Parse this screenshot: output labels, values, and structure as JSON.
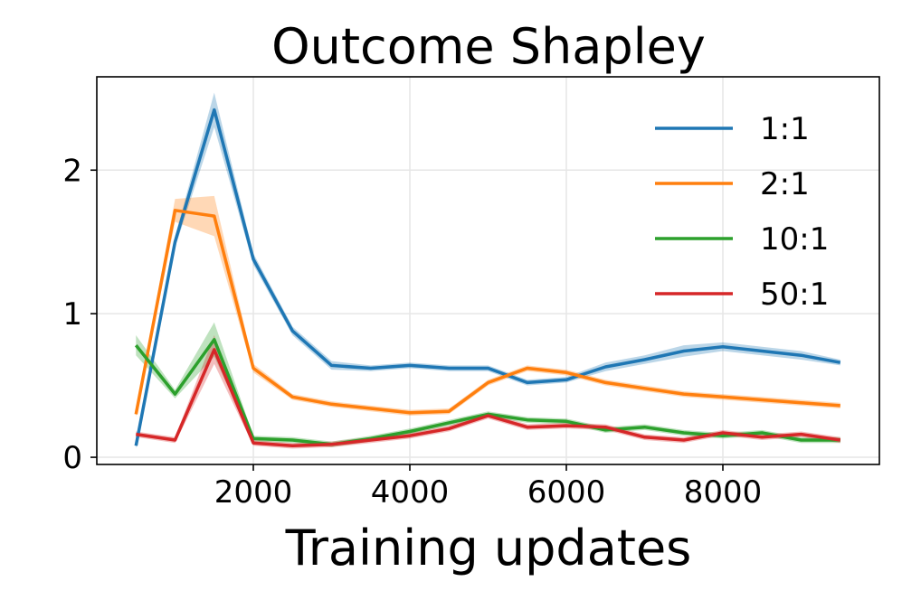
{
  "chart_data": {
    "type": "line",
    "title": "Outcome Shapley",
    "xlabel": "Training updates",
    "ylabel": "",
    "xlim": [
      0,
      10000
    ],
    "ylim": [
      -0.05,
      2.65
    ],
    "xticks": [
      2000,
      4000,
      6000,
      8000
    ],
    "xtick_labels": [
      "2000",
      "4000",
      "6000",
      "8000"
    ],
    "yticks": [
      0,
      1,
      2
    ],
    "ytick_labels": [
      "0",
      "1",
      "2"
    ],
    "grid": true,
    "legend_position": "top-right",
    "x": [
      500,
      1000,
      1500,
      2000,
      2500,
      3000,
      3500,
      4000,
      4500,
      5000,
      5500,
      6000,
      6500,
      7000,
      7500,
      8000,
      8500,
      9000,
      9500
    ],
    "series": [
      {
        "name": "1:1",
        "color": "#1f77b4",
        "values": [
          0.08,
          1.5,
          2.42,
          1.38,
          0.88,
          0.64,
          0.62,
          0.64,
          0.62,
          0.62,
          0.52,
          0.54,
          0.63,
          0.68,
          0.74,
          0.77,
          0.74,
          0.71,
          0.66
        ],
        "band": [
          0.02,
          0.04,
          0.12,
          0.04,
          0.03,
          0.03,
          0.02,
          0.02,
          0.02,
          0.02,
          0.02,
          0.02,
          0.03,
          0.03,
          0.04,
          0.03,
          0.03,
          0.03,
          0.02
        ]
      },
      {
        "name": "2:1",
        "color": "#ff7f0e",
        "values": [
          0.3,
          1.72,
          1.68,
          0.62,
          0.42,
          0.37,
          0.34,
          0.31,
          0.32,
          0.52,
          0.62,
          0.59,
          0.52,
          0.48,
          0.44,
          0.42,
          0.4,
          0.38,
          0.36
        ],
        "band": [
          0.02,
          0.08,
          0.14,
          0.03,
          0.02,
          0.02,
          0.02,
          0.02,
          0.02,
          0.02,
          0.02,
          0.02,
          0.02,
          0.02,
          0.02,
          0.02,
          0.02,
          0.02,
          0.02
        ]
      },
      {
        "name": "10:1",
        "color": "#2ca02c",
        "values": [
          0.78,
          0.44,
          0.82,
          0.13,
          0.12,
          0.09,
          0.13,
          0.18,
          0.24,
          0.3,
          0.26,
          0.25,
          0.19,
          0.21,
          0.17,
          0.15,
          0.17,
          0.12,
          0.12
        ],
        "band": [
          0.07,
          0.03,
          0.12,
          0.02,
          0.02,
          0.02,
          0.02,
          0.02,
          0.02,
          0.02,
          0.02,
          0.02,
          0.02,
          0.02,
          0.02,
          0.02,
          0.02,
          0.02,
          0.02
        ]
      },
      {
        "name": "50:1",
        "color": "#d62728",
        "values": [
          0.16,
          0.12,
          0.75,
          0.1,
          0.08,
          0.09,
          0.12,
          0.15,
          0.2,
          0.29,
          0.21,
          0.22,
          0.21,
          0.14,
          0.12,
          0.17,
          0.14,
          0.16,
          0.12
        ],
        "band": [
          0.02,
          0.02,
          0.1,
          0.02,
          0.02,
          0.02,
          0.02,
          0.02,
          0.02,
          0.02,
          0.02,
          0.02,
          0.02,
          0.02,
          0.02,
          0.02,
          0.02,
          0.02,
          0.02
        ]
      }
    ]
  }
}
